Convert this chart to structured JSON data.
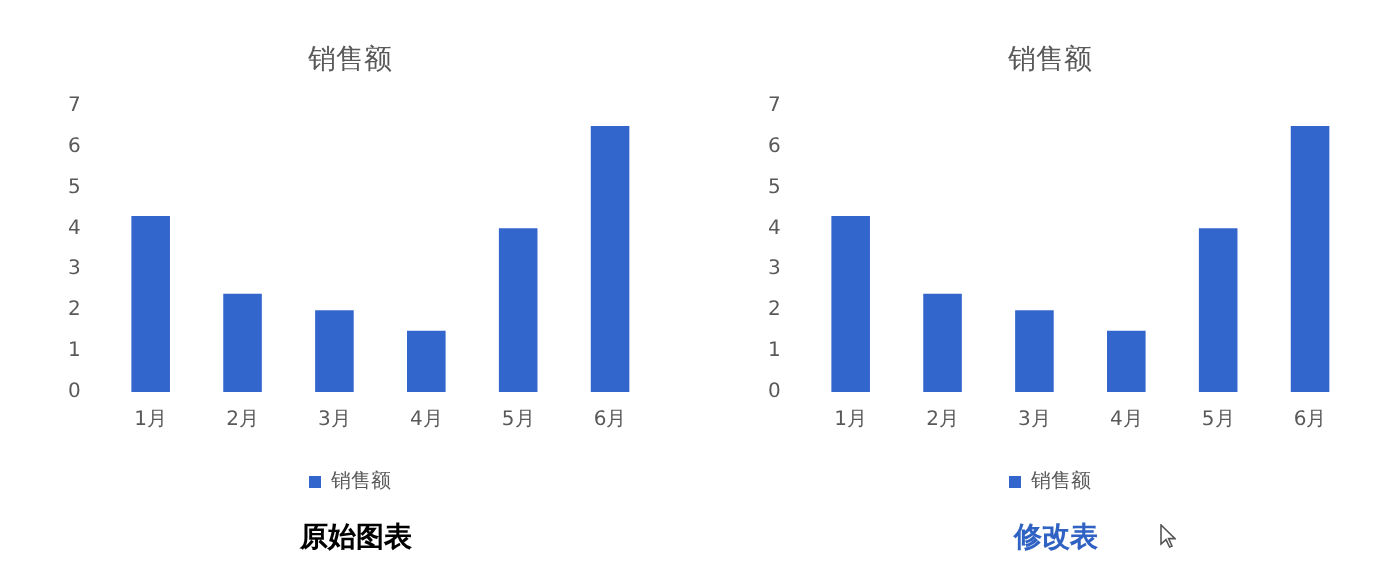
{
  "chart_data": [
    {
      "type": "bar",
      "title": "销售额",
      "categories": [
        "1月",
        "2月",
        "3月",
        "4月",
        "5月",
        "6月"
      ],
      "series": [
        {
          "name": "销售额",
          "color": "#3366cc",
          "values": [
            4.3,
            2.4,
            2.0,
            1.5,
            4.0,
            6.5
          ]
        }
      ],
      "ylim": [
        0,
        7
      ],
      "yticks": [
        0,
        1,
        2,
        3,
        4,
        5,
        6,
        7
      ],
      "grid": false,
      "legend": "bottom",
      "annotations": [
        "原始图表"
      ]
    },
    {
      "type": "bar",
      "title": "销售额",
      "categories": [
        "1月",
        "2月",
        "3月",
        "4月",
        "5月",
        "6月"
      ],
      "series": [
        {
          "name": "销售额",
          "color": "#3366cc",
          "values": [
            4.3,
            2.4,
            2.0,
            1.5,
            4.0,
            6.5
          ]
        }
      ],
      "ylim": [
        0,
        7
      ],
      "yticks": [
        0,
        1,
        2,
        3,
        4,
        5,
        6,
        7
      ],
      "grid": false,
      "legend": "bottom",
      "annotations": [
        "修改表"
      ]
    }
  ]
}
